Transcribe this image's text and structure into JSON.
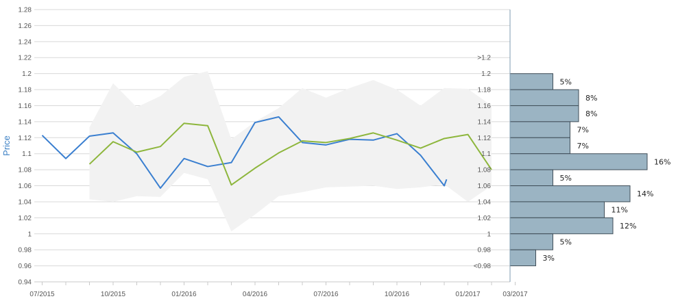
{
  "chart_data": {
    "type": "line",
    "ylabel": "Price",
    "ylim": [
      0.94,
      1.28
    ],
    "y_ticks": [
      "1.28",
      "1.26",
      "1.24",
      "1.22",
      "1.2",
      "1.18",
      "1.16",
      "1.14",
      "1.12",
      "1.1",
      "1.08",
      "1.06",
      "1.04",
      "1.02",
      "1",
      "0.98",
      "0.96",
      "0.94"
    ],
    "x_ticks": [
      "07/2015",
      "10/2015",
      "01/2016",
      "04/2016",
      "07/2016",
      "10/2016",
      "01/2017",
      "03/2017"
    ],
    "grid": true,
    "series": [
      {
        "color": "#3a7fd0",
        "x": [
          "2015-07",
          "2015-08",
          "2015-09",
          "2015-10",
          "2015-11",
          "2015-12",
          "2016-01",
          "2016-02",
          "2016-03",
          "2016-04",
          "2016-05",
          "2016-06",
          "2016-07",
          "2016-08",
          "2016-09",
          "2016-10",
          "2016-11",
          "2016-12",
          "2016-12b"
        ],
        "values": [
          1.123,
          1.094,
          1.122,
          1.126,
          1.1,
          1.057,
          1.094,
          1.084,
          1.089,
          1.139,
          1.146,
          1.114,
          1.111,
          1.118,
          1.117,
          1.125,
          1.098,
          1.06,
          1.068
        ]
      },
      {
        "color": "#8db63c",
        "x": [
          "2015-09",
          "2015-10",
          "2015-11",
          "2015-12",
          "2016-01",
          "2016-02",
          "2016-03",
          "2016-04",
          "2016-05",
          "2016-06",
          "2016-07",
          "2016-08",
          "2016-09",
          "2016-10",
          "2016-11",
          "2016-12",
          "2017-01",
          "2017-02"
        ],
        "values": [
          1.087,
          1.115,
          1.102,
          1.109,
          1.138,
          1.135,
          1.061,
          1.082,
          1.101,
          1.116,
          1.114,
          1.119,
          1.126,
          1.117,
          1.107,
          1.119,
          1.124,
          1.08
        ]
      }
    ],
    "range_band": {
      "color": "#f2f2f2",
      "upper": [
        null,
        null,
        1.133,
        1.188,
        1.158,
        1.172,
        1.196,
        1.203,
        1.118,
        1.14,
        1.157,
        1.182,
        1.17,
        1.182,
        1.192,
        1.18,
        1.16,
        1.182,
        1.181,
        1.16
      ],
      "lower": [
        null,
        null,
        1.043,
        1.04,
        1.047,
        1.046,
        1.076,
        1.068,
        1.003,
        1.024,
        1.047,
        1.052,
        1.058,
        1.059,
        1.06,
        1.056,
        1.058,
        1.062,
        1.04,
        1.06
      ]
    },
    "histogram": {
      "color": "#9bb4c3",
      "bins": [
        ">1.2",
        "1.2",
        "1.18",
        "1.16",
        "1.14",
        "1.12",
        "1.1",
        "1.08",
        "1.06",
        "1.04",
        "1.02",
        "1",
        "0.98",
        "<0.98"
      ],
      "values": [
        0,
        5,
        8,
        8,
        7,
        7,
        16,
        5,
        14,
        11,
        12,
        5,
        3,
        0
      ],
      "labels": [
        "",
        "5%",
        "8%",
        "8%",
        "7%",
        "7%",
        "16%",
        "5%",
        "14%",
        "11%",
        "12%",
        "5%",
        "3%",
        ""
      ]
    }
  }
}
